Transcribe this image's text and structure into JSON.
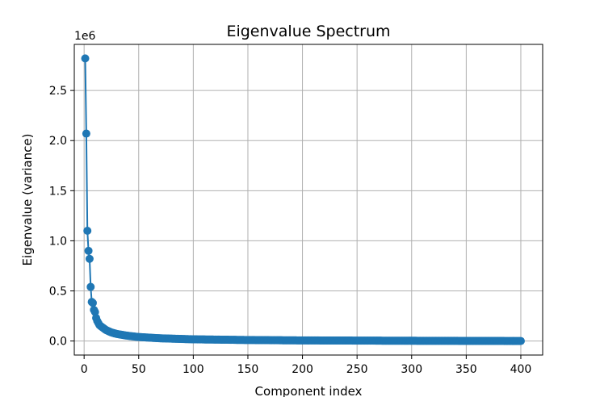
{
  "chart_data": {
    "type": "line",
    "title": "Eigenvalue Spectrum",
    "xlabel": "Component index",
    "ylabel": "Eigenvalue (variance)",
    "y_offset_label": "1e6",
    "y_scale_multiplier": 1000000,
    "xlim": [
      -9,
      420
    ],
    "ylim": [
      -140000,
      2960000
    ],
    "x_ticks": [
      0,
      50,
      100,
      150,
      200,
      250,
      300,
      350,
      400
    ],
    "x_tick_labels": [
      "0",
      "50",
      "100",
      "150",
      "200",
      "250",
      "300",
      "350",
      "400"
    ],
    "y_ticks": [
      0,
      500000,
      1000000,
      1500000,
      2000000,
      2500000
    ],
    "y_tick_labels": [
      "0.0",
      "0.5",
      "1.0",
      "1.5",
      "2.0",
      "2.5"
    ],
    "grid": true,
    "legend": "none",
    "series": [
      {
        "color": "#1f77b4",
        "marker": "circle",
        "line": true,
        "n_points": 400,
        "x_start": 1,
        "first_values": [
          2820000,
          2070000,
          1100000,
          900000,
          820000,
          540000,
          390000,
          380000,
          310000,
          290000,
          230000,
          200000,
          180000,
          160000,
          150000
        ],
        "anchor_points": [
          [
            15,
            150000
          ],
          [
            20,
            110000
          ],
          [
            25,
            85000
          ],
          [
            30,
            70000
          ],
          [
            40,
            52000
          ],
          [
            50,
            40000
          ],
          [
            70,
            27000
          ],
          [
            100,
            17000
          ],
          [
            150,
            10000
          ],
          [
            200,
            6000
          ],
          [
            300,
            2500
          ],
          [
            400,
            0
          ]
        ]
      }
    ]
  }
}
